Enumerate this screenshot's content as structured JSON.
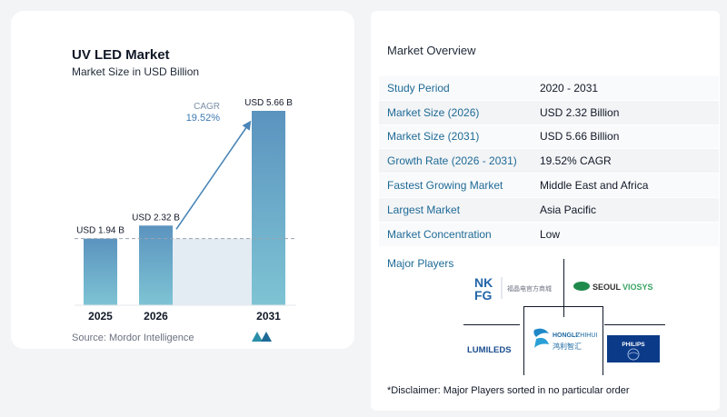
{
  "chart_data": {
    "type": "bar",
    "title": "UV LED Market",
    "subtitle": "Market Size in USD Billion",
    "categories": [
      "2025",
      "2026",
      "2031"
    ],
    "values": [
      1.94,
      2.32,
      5.66
    ],
    "data_labels": [
      "USD 1.94 B",
      "USD 2.32 B",
      "USD 5.66 B"
    ],
    "ylim": [
      0,
      6
    ],
    "cagr_label": "CAGR",
    "cagr_value": "19.52%",
    "colors": {
      "bar_top": "#5b93bf",
      "bar_bottom": "#7ec4d4",
      "band": "#e4ecf3",
      "arrow": "#4a86b8",
      "cagr_text": "#3d7ab3"
    }
  },
  "source": "Source:  Mordor Intelligence",
  "overview": {
    "title": "Market Overview",
    "rows": [
      {
        "label": "Study Period",
        "value": "2020 - 2031"
      },
      {
        "label": "Market Size (2026)",
        "value": "USD 2.32 Billion"
      },
      {
        "label": "Market Size (2031)",
        "value": "USD 5.66 Billion"
      },
      {
        "label": "Growth Rate (2026 - 2031)",
        "value": "19.52% CAGR"
      },
      {
        "label": "Fastest Growing Market",
        "value": "Middle East and Africa"
      },
      {
        "label": "Largest Market",
        "value": "Asia Pacific"
      },
      {
        "label": "Market Concentration",
        "value": "Low"
      }
    ]
  },
  "players": {
    "title": "Major Players",
    "logos": [
      "NKFG 福晶电官方商城",
      "SEOULVIOSYS",
      "HONGLIZHIHUI 鸿利智汇",
      "LUMILEDS",
      "PHILIPS"
    ]
  },
  "disclaimer": "*Disclaimer: Major Players sorted in no particular order"
}
